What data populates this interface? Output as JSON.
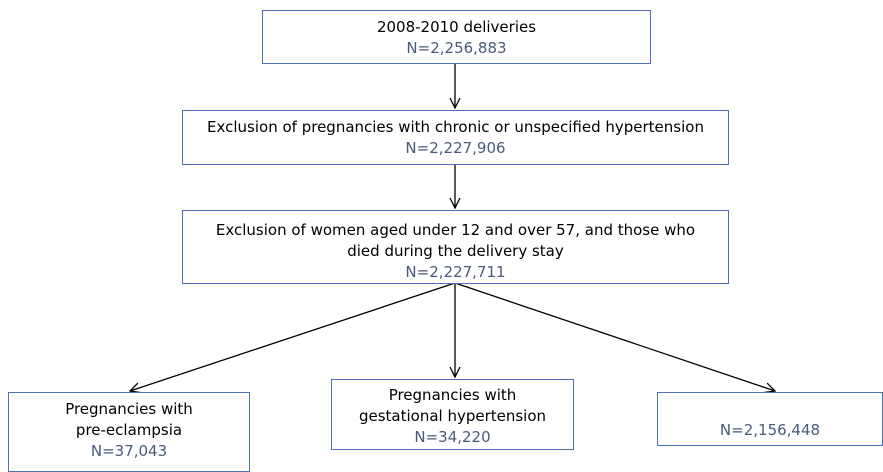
{
  "nodes": [
    {
      "lines": [
        "2008-2010 deliveries"
      ],
      "count": "N=2,256,883"
    },
    {
      "lines": [
        "Exclusion of pregnancies with chronic or unspecified hypertension"
      ],
      "count": "N=2,227,906"
    },
    {
      "lines": [
        "Exclusion of women aged under 12 and over 57, and those who",
        "died during the delivery stay"
      ],
      "count": "N=2,227,711"
    },
    {
      "lines": [
        "Pregnancies with",
        "pre-eclampsia"
      ],
      "count": "N=37,043"
    },
    {
      "lines": [
        "Pregnancies with",
        "gestational hypertension"
      ],
      "count": "N=34,220"
    },
    {
      "count": "N=2,156,448"
    }
  ]
}
